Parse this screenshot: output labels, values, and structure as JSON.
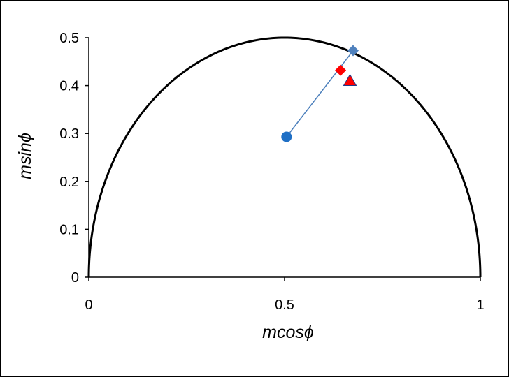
{
  "chart_data": {
    "type": "scatter",
    "xlabel": "mcosϕ",
    "ylabel": "msinϕ",
    "xlim": [
      0,
      1
    ],
    "ylim": [
      0,
      0.5
    ],
    "x_ticks": [
      "0",
      "0.5",
      "1"
    ],
    "y_ticks": [
      "0",
      "0.1",
      "0.2",
      "0.3",
      "0.4",
      "0.5"
    ],
    "grid": false,
    "legend": "none",
    "semicircle": {
      "center_x": 0.5,
      "radius": 0.5,
      "color": "#000000"
    },
    "connector": {
      "from": [
        0.505,
        0.293
      ],
      "to": [
        0.675,
        0.473
      ],
      "color": "#4a7ebb"
    },
    "series": [
      {
        "marker": "circle",
        "color": "#1f6fc5",
        "x": [
          0.505
        ],
        "y": [
          0.293
        ]
      },
      {
        "marker": "diamond",
        "color": "#4f81bd",
        "x": [
          0.675
        ],
        "y": [
          0.473
        ]
      },
      {
        "marker": "diamond",
        "color": "#ff0000",
        "x": [
          0.643
        ],
        "y": [
          0.432
        ]
      },
      {
        "marker": "triangle",
        "color": "#ff0000",
        "x": [
          0.667
        ],
        "y": [
          0.41
        ]
      }
    ]
  }
}
